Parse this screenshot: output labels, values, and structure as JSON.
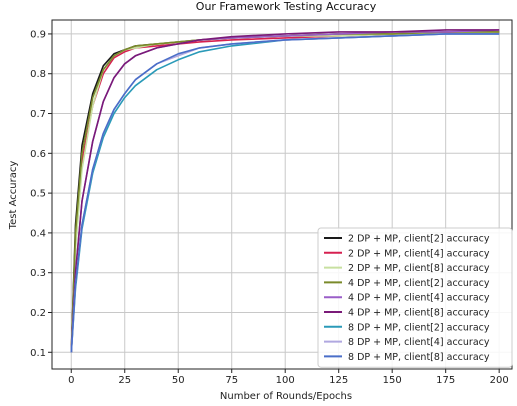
{
  "chart_data": {
    "type": "line",
    "title": "Our Framework Testing Accuracy",
    "xlabel": "Number of Rounds/Epochs",
    "ylabel": "Test Accuracy",
    "xlim": [
      -9,
      206
    ],
    "ylim": [
      0.058,
      0.935
    ],
    "xticks": [
      0,
      25,
      50,
      75,
      100,
      125,
      150,
      175,
      200
    ],
    "yticks": [
      0.1,
      0.2,
      0.3,
      0.4,
      0.5,
      0.6,
      0.7,
      0.8,
      0.9
    ],
    "grid": true,
    "legend_position": "lower-right",
    "x": [
      0,
      2,
      5,
      10,
      15,
      20,
      25,
      30,
      40,
      50,
      60,
      75,
      100,
      125,
      150,
      175,
      200
    ],
    "series": [
      {
        "name": "2 DP + MP, client[2] accuracy",
        "color": "#1a1a1a",
        "values": [
          0.1,
          0.42,
          0.62,
          0.75,
          0.82,
          0.85,
          0.86,
          0.87,
          0.875,
          0.88,
          0.885,
          0.89,
          0.895,
          0.9,
          0.9,
          0.905,
          0.905
        ]
      },
      {
        "name": "2 DP + MP, client[4] accuracy",
        "color": "#d62050",
        "values": [
          0.1,
          0.38,
          0.58,
          0.72,
          0.8,
          0.84,
          0.855,
          0.865,
          0.87,
          0.875,
          0.88,
          0.885,
          0.89,
          0.895,
          0.9,
          0.905,
          0.905
        ]
      },
      {
        "name": "2 DP + MP, client[8] accuracy",
        "color": "#c8e0a0",
        "values": [
          0.1,
          0.36,
          0.56,
          0.72,
          0.81,
          0.845,
          0.86,
          0.865,
          0.875,
          0.88,
          0.885,
          0.89,
          0.895,
          0.895,
          0.9,
          0.9,
          0.905
        ]
      },
      {
        "name": "4 DP + MP, client[2] accuracy",
        "color": "#7a8a2a",
        "values": [
          0.1,
          0.4,
          0.6,
          0.74,
          0.81,
          0.845,
          0.86,
          0.87,
          0.875,
          0.88,
          0.885,
          0.89,
          0.895,
          0.9,
          0.9,
          0.905,
          0.905
        ]
      },
      {
        "name": "4 DP + MP, client[4] accuracy",
        "color": "#9a5ec8",
        "values": [
          0.1,
          0.3,
          0.48,
          0.63,
          0.73,
          0.79,
          0.825,
          0.845,
          0.865,
          0.875,
          0.885,
          0.89,
          0.895,
          0.9,
          0.905,
          0.905,
          0.91
        ]
      },
      {
        "name": "4 DP + MP, client[8] accuracy",
        "color": "#7a1a78",
        "values": [
          0.1,
          0.3,
          0.48,
          0.63,
          0.73,
          0.79,
          0.825,
          0.845,
          0.865,
          0.875,
          0.885,
          0.893,
          0.9,
          0.905,
          0.905,
          0.91,
          0.91
        ]
      },
      {
        "name": "8 DP + MP, client[2] accuracy",
        "color": "#2a9ab8",
        "values": [
          0.1,
          0.26,
          0.41,
          0.55,
          0.64,
          0.7,
          0.74,
          0.77,
          0.81,
          0.835,
          0.855,
          0.87,
          0.885,
          0.89,
          0.895,
          0.9,
          0.9
        ]
      },
      {
        "name": "8 DP + MP, client[4] accuracy",
        "color": "#b0a8e0",
        "values": [
          0.1,
          0.27,
          0.42,
          0.56,
          0.65,
          0.71,
          0.75,
          0.785,
          0.825,
          0.845,
          0.865,
          0.875,
          0.885,
          0.89,
          0.895,
          0.9,
          0.9
        ]
      },
      {
        "name": "8 DP + MP, client[8] accuracy",
        "color": "#4a6ec8",
        "values": [
          0.1,
          0.27,
          0.42,
          0.56,
          0.65,
          0.71,
          0.75,
          0.785,
          0.825,
          0.85,
          0.865,
          0.875,
          0.885,
          0.89,
          0.895,
          0.9,
          0.9
        ]
      }
    ]
  }
}
